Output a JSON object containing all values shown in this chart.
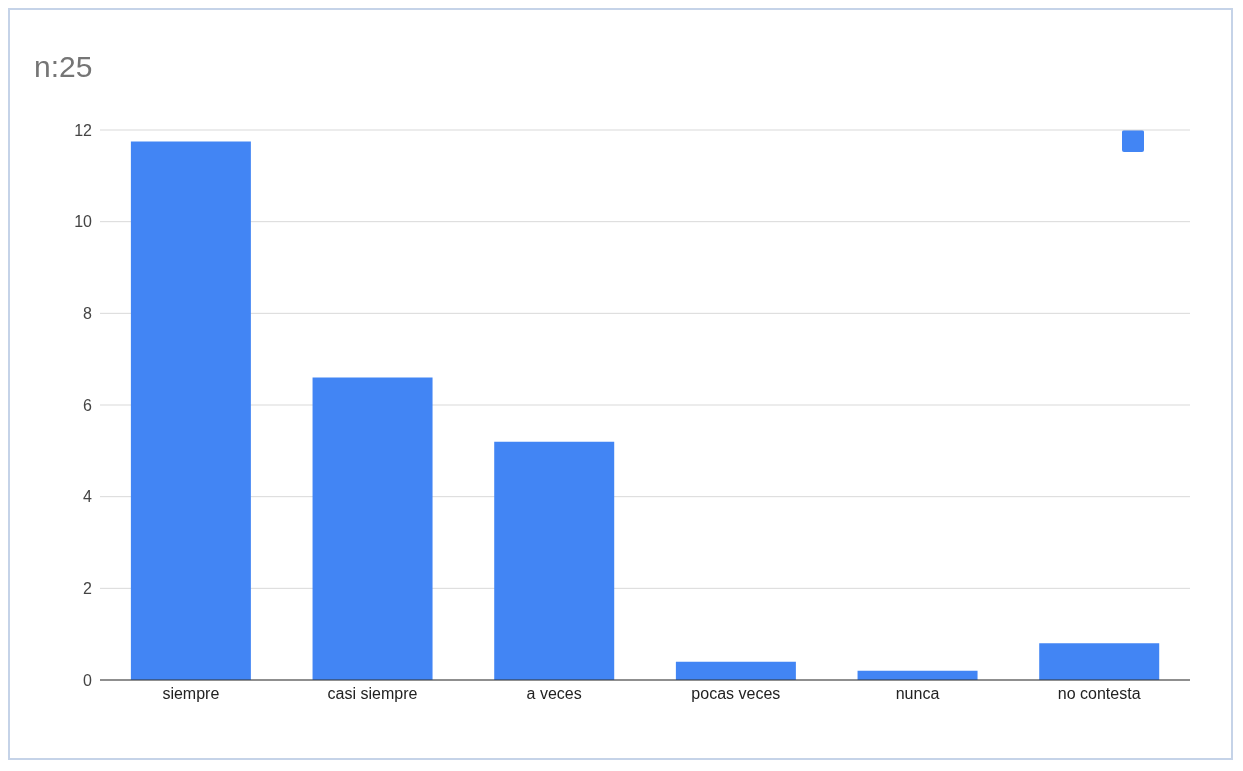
{
  "chart_data": {
    "type": "bar",
    "title": "n:25",
    "categories": [
      "siempre",
      "casi siempre",
      "a veces",
      "pocas veces",
      "nunca",
      "no contesta"
    ],
    "series": [
      {
        "color": "#4285f4",
        "values": [
          11.75,
          6.6,
          5.2,
          0.4,
          0.2,
          0.8
        ]
      }
    ],
    "ylim": [
      0,
      12
    ],
    "yticks": [
      0,
      2,
      4,
      6,
      8,
      10,
      12
    ],
    "grid": "y"
  }
}
